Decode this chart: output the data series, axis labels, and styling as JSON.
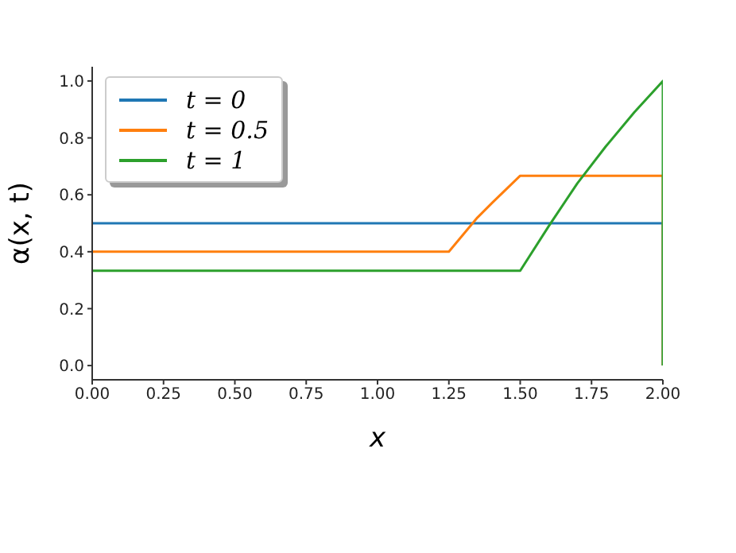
{
  "chart_data": {
    "type": "line",
    "xlabel": "x",
    "ylabel": "α(x, t)",
    "xlim": [
      0,
      2
    ],
    "ylim": [
      -0.05,
      1.05
    ],
    "xticks": [
      {
        "value": 0,
        "label": "0.00"
      },
      {
        "value": 0.25,
        "label": "0.25"
      },
      {
        "value": 0.5,
        "label": "0.50"
      },
      {
        "value": 0.75,
        "label": "0.75"
      },
      {
        "value": 1,
        "label": "1.00"
      },
      {
        "value": 1.25,
        "label": "1.25"
      },
      {
        "value": 1.5,
        "label": "1.50"
      },
      {
        "value": 1.75,
        "label": "1.75"
      },
      {
        "value": 2,
        "label": "2.00"
      }
    ],
    "yticks": [
      {
        "value": 0,
        "label": "0.0"
      },
      {
        "value": 0.2,
        "label": "0.2"
      },
      {
        "value": 0.4,
        "label": "0.4"
      },
      {
        "value": 0.6,
        "label": "0.6"
      },
      {
        "value": 0.8,
        "label": "0.8"
      },
      {
        "value": 1,
        "label": "1.0"
      }
    ],
    "grid": false,
    "legend": "top left",
    "marker": "none",
    "line_style": "solid",
    "series": [
      {
        "name": "t = 0",
        "color": "#1f77b4",
        "x": [
          0,
          2,
          2
        ],
        "values": [
          0.5,
          0.5,
          0
        ]
      },
      {
        "name": "t = 0.5",
        "color": "#ff7f0e",
        "x": [
          0,
          1.25,
          1.35,
          1.4,
          1.5,
          2,
          2
        ],
        "values": [
          0.4,
          0.4,
          0.52,
          0.57,
          0.667,
          0.667,
          0
        ]
      },
      {
        "name": "t = 1",
        "color": "#2ca02c",
        "x": [
          0,
          1.5,
          1.6,
          1.7,
          1.8,
          1.9,
          2,
          2
        ],
        "values": [
          0.333,
          0.333,
          0.49,
          0.64,
          0.77,
          0.89,
          1,
          0
        ]
      }
    ]
  }
}
